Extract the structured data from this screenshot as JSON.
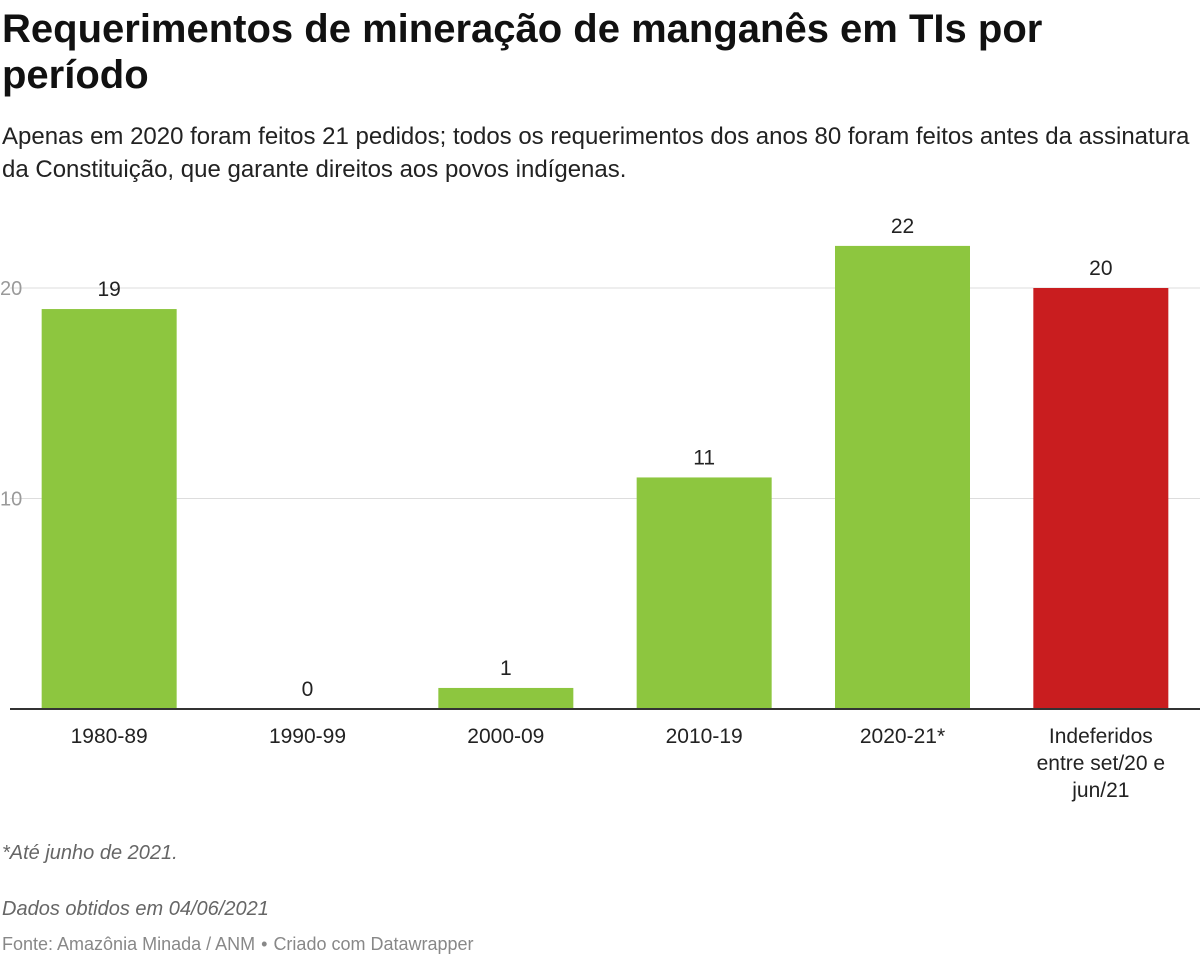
{
  "header": {
    "title": "Requerimentos de mineração de manganês em TIs por período",
    "subtitle": "Apenas em 2020 foram feitos 21 pedidos; todos os requerimentos dos anos 80 foram feitos antes da assinatura da Constituição, que garante direitos aos povos indígenas."
  },
  "chart_data": {
    "type": "bar",
    "title": "Requerimentos de mineração de manganês em TIs por período",
    "categories": [
      "1980-89",
      "1990-99",
      "2000-09",
      "2010-19",
      "2020-21*",
      "Indeferidos entre set/20 e jun/21"
    ],
    "category_lines": [
      [
        "1980-89"
      ],
      [
        "1990-99"
      ],
      [
        "2000-09"
      ],
      [
        "2010-19"
      ],
      [
        "2020-21*"
      ],
      [
        "Indeferidos",
        "entre set/20 e",
        "jun/21"
      ]
    ],
    "values": [
      19,
      0,
      1,
      11,
      22,
      20
    ],
    "colors": [
      "#8dc63f",
      "#8dc63f",
      "#8dc63f",
      "#8dc63f",
      "#8dc63f",
      "#c91d1f"
    ],
    "yticks": [
      10,
      20
    ],
    "ylim": [
      0,
      22
    ],
    "xlabel": "",
    "ylabel": "",
    "grid": true
  },
  "notes": {
    "footnote": "*Até junho de 2021.",
    "data_date": "Dados obtidos em 04/06/2021"
  },
  "footer": {
    "source": "Fonte: Amazônia Minada / ANM",
    "credit": "Criado com Datawrapper",
    "separator": "•"
  }
}
